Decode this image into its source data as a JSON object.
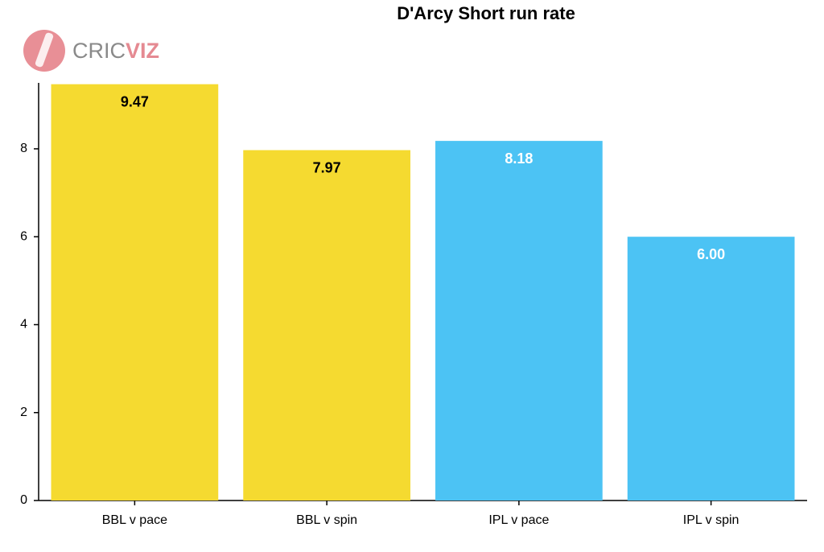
{
  "chart_data": {
    "type": "bar",
    "title": "D'Arcy Short run rate",
    "source_logo": [
      "CRIC",
      "VIZ"
    ],
    "categories": [
      "BBL v pace",
      "BBL v spin",
      "IPL v pace",
      "IPL v spin"
    ],
    "values": [
      9.47,
      7.97,
      8.18,
      6.0
    ],
    "value_labels": [
      "9.47",
      "7.97",
      "8.18",
      "6.00"
    ],
    "colors": [
      "#f5da30",
      "#f5da30",
      "#4cc3f4",
      "#4cc3f4"
    ],
    "label_colors": [
      "#000000",
      "#000000",
      "#ffffff",
      "#ffffff"
    ],
    "ylim": [
      0,
      9.5
    ],
    "yticks": [
      0,
      2,
      4,
      6,
      8
    ],
    "grid": false
  }
}
